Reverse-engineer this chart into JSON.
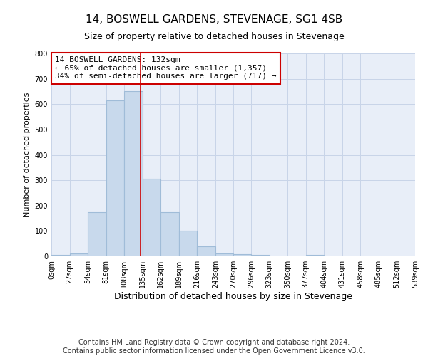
{
  "title": "14, BOSWELL GARDENS, STEVENAGE, SG1 4SB",
  "subtitle": "Size of property relative to detached houses in Stevenage",
  "xlabel": "Distribution of detached houses by size in Stevenage",
  "ylabel": "Number of detached properties",
  "bin_edges": [
    0,
    27,
    54,
    81,
    108,
    135,
    162,
    189,
    216,
    243,
    270,
    296,
    323,
    350,
    377,
    404,
    431,
    458,
    485,
    512,
    539
  ],
  "bar_heights": [
    5,
    10,
    175,
    615,
    650,
    305,
    175,
    100,
    40,
    12,
    8,
    5,
    0,
    0,
    5,
    0,
    0,
    0,
    0,
    0
  ],
  "bar_color": "#c8d9ec",
  "bar_edgecolor": "#a0bcd8",
  "bar_linewidth": 0.8,
  "vline_x": 132,
  "vline_color": "#cc0000",
  "vline_linewidth": 1.2,
  "annotation_box_text": "14 BOSWELL GARDENS: 132sqm\n← 65% of detached houses are smaller (1,357)\n34% of semi-detached houses are larger (717) →",
  "annotation_fontsize": 8,
  "annotation_box_edgecolor": "#cc0000",
  "annotation_box_facecolor": "white",
  "tick_labels": [
    "0sqm",
    "27sqm",
    "54sqm",
    "81sqm",
    "108sqm",
    "135sqm",
    "162sqm",
    "189sqm",
    "216sqm",
    "243sqm",
    "270sqm",
    "296sqm",
    "323sqm",
    "350sqm",
    "377sqm",
    "404sqm",
    "431sqm",
    "458sqm",
    "485sqm",
    "512sqm",
    "539sqm"
  ],
  "ylim": [
    0,
    800
  ],
  "yticks": [
    0,
    100,
    200,
    300,
    400,
    500,
    600,
    700,
    800
  ],
  "grid_color": "#c8d4e8",
  "bg_color": "#e8eef8",
  "footer_text": "Contains HM Land Registry data © Crown copyright and database right 2024.\nContains public sector information licensed under the Open Government Licence v3.0.",
  "title_fontsize": 11,
  "subtitle_fontsize": 9,
  "xlabel_fontsize": 9,
  "ylabel_fontsize": 8,
  "tick_fontsize": 7,
  "footer_fontsize": 7
}
